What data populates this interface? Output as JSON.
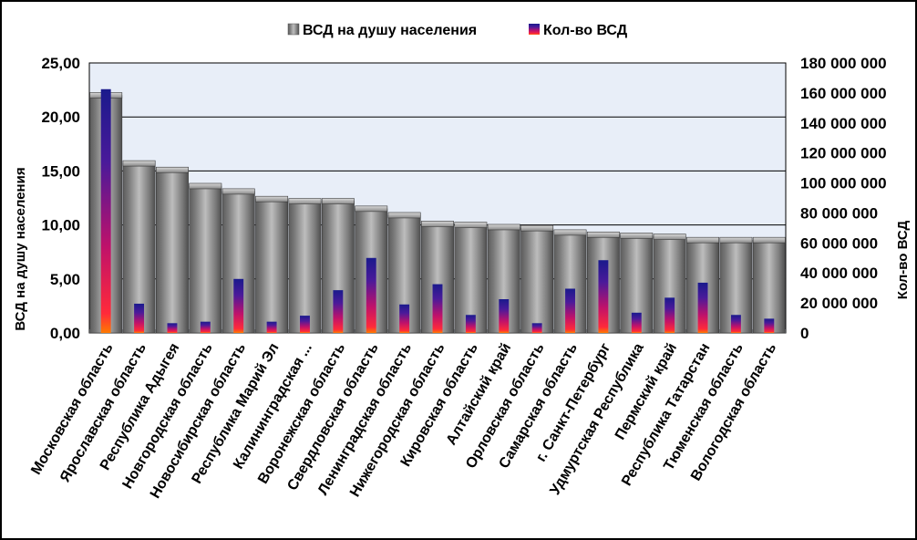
{
  "chart_data": {
    "type": "bar",
    "title": "",
    "ylabel": "ВСД на душу населения",
    "y2label": "Кол-во ВСД",
    "ylim": [
      0,
      25
    ],
    "y2lim": [
      0,
      180000000
    ],
    "y_ticks": [
      "0,00",
      "5,00",
      "10,00",
      "15,00",
      "20,00",
      "25,00"
    ],
    "y2_ticks": [
      "0",
      "20 000 000",
      "40 000 000",
      "60 000 000",
      "80 000 000",
      "100 000 000",
      "120 000 000",
      "140 000 000",
      "160 000 000",
      "180 000 000"
    ],
    "legend_position": "top",
    "plot_background": "#e8eef8",
    "grid": true,
    "categories": [
      "Московская область",
      "Ярославская область",
      "Республика Адыгея",
      "Новгородская область",
      "Новосибирская область",
      "Республика Марий Эл",
      "Калининградская ...",
      "Воронежская область",
      "Свердловская область",
      "Ленинградская область",
      "Нижегородская область",
      "Кировская область",
      "Алтайский край",
      "Орловская область",
      "Самарская область",
      "г. Санкт-Петербург",
      "Удмуртская Республика",
      "Пермский край",
      "Республика Татарстан",
      "Тюменская область",
      "Вологодская область"
    ],
    "series": [
      {
        "name": "ВСД на душу населения",
        "axis": "left",
        "color": "#808080",
        "values": [
          22.0,
          15.7,
          15.1,
          13.6,
          13.1,
          12.4,
          12.2,
          12.2,
          11.5,
          10.9,
          10.1,
          10.0,
          9.8,
          9.7,
          9.3,
          9.1,
          9.0,
          8.9,
          8.6,
          8.6,
          8.6
        ]
      },
      {
        "name": "Кол-во ВСД",
        "axis": "right",
        "color": "#2a1a8c",
        "values": [
          162500000,
          19500000,
          6500000,
          7500000,
          36000000,
          7500000,
          11500000,
          28500000,
          50000000,
          19000000,
          32500000,
          12000000,
          22500000,
          6500000,
          29500000,
          48500000,
          13500000,
          23500000,
          33500000,
          12000000,
          9500000
        ]
      }
    ]
  }
}
